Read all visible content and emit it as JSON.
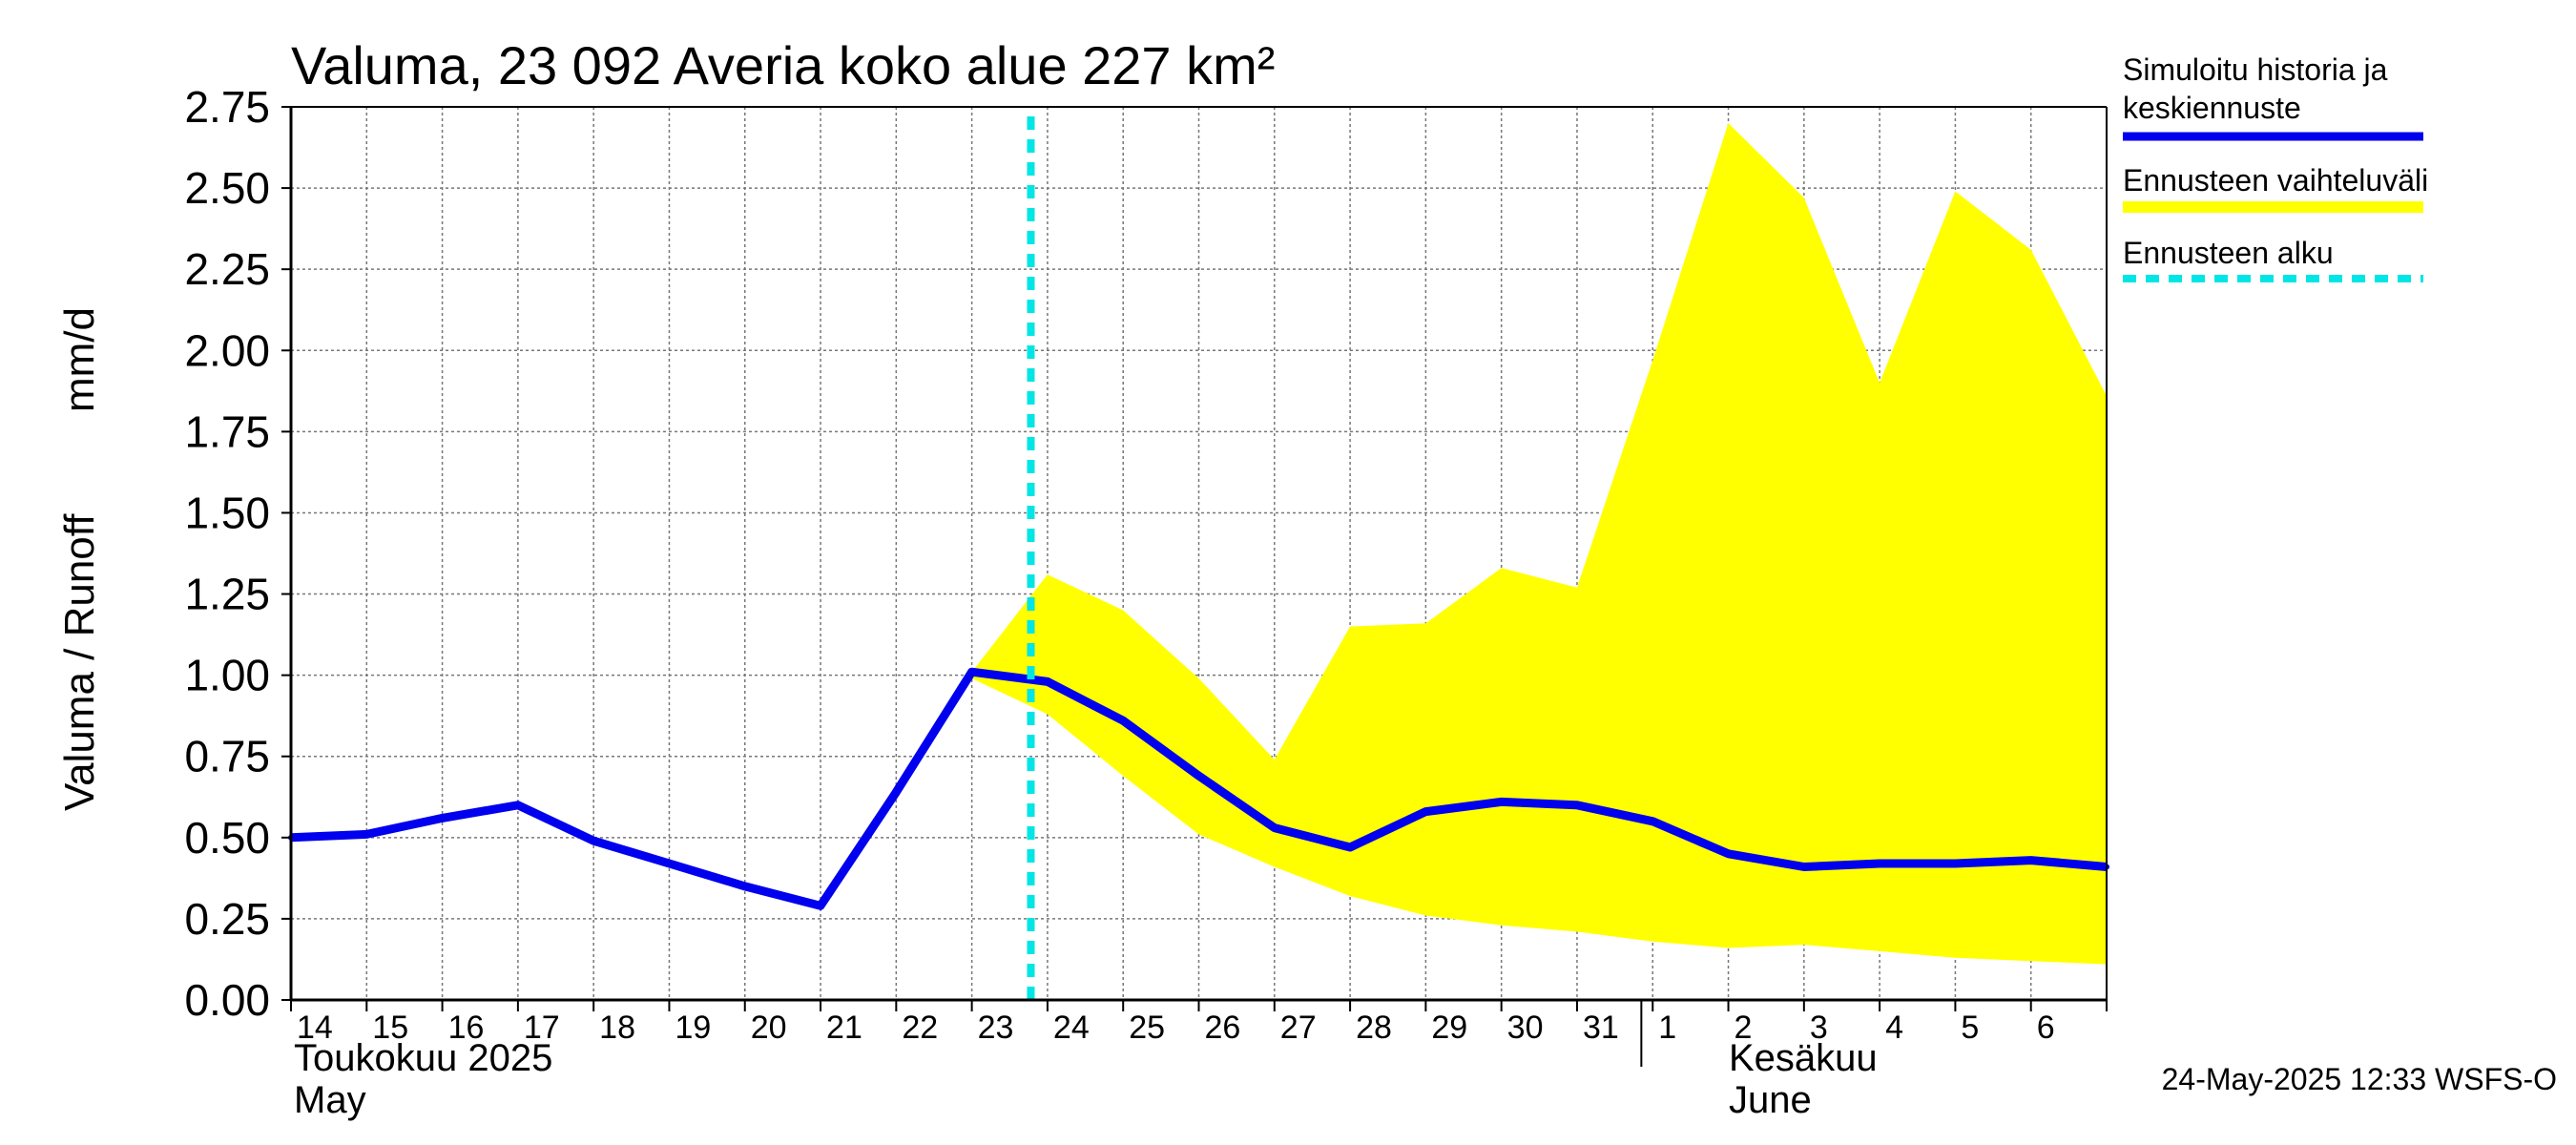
{
  "chart_data": {
    "type": "line",
    "title": "Valuma, 23 092 Averia koko alue 227 km²",
    "ylabel_left": "Valuma / Runoff",
    "ylabel_right": "mm/d",
    "ylim": [
      0,
      2.75
    ],
    "yticks": [
      "0.00",
      "0.25",
      "0.50",
      "0.75",
      "1.00",
      "1.25",
      "1.50",
      "1.75",
      "2.00",
      "2.25",
      "2.50",
      "2.75"
    ],
    "grid": true,
    "x_range": [
      "2025-05-14",
      "2025-06-07"
    ],
    "x_tick_labels": [
      "14",
      "15",
      "16",
      "17",
      "18",
      "19",
      "20",
      "21",
      "22",
      "23",
      "24",
      "25",
      "26",
      "27",
      "28",
      "29",
      "30",
      "31",
      "1",
      "2",
      "3",
      "4",
      "5",
      "6"
    ],
    "month_labels": {
      "may_fi": "Toukokuu  2025",
      "may_en": "May",
      "june_fi": "Kesäkuu",
      "june_en": "June"
    },
    "forecast_start": "2025-05-24",
    "series": [
      {
        "name": "Simuloitu historia ja keskiennuste",
        "color": "#0000ee",
        "x": [
          "2025-05-14",
          "2025-05-15",
          "2025-05-16",
          "2025-05-17",
          "2025-05-18",
          "2025-05-19",
          "2025-05-20",
          "2025-05-21",
          "2025-05-22",
          "2025-05-23",
          "2025-05-24",
          "2025-05-25",
          "2025-05-26",
          "2025-05-27",
          "2025-05-28",
          "2025-05-29",
          "2025-05-30",
          "2025-05-31",
          "2025-06-01",
          "2025-06-02",
          "2025-06-03",
          "2025-06-04",
          "2025-06-05",
          "2025-06-06",
          "2025-06-07"
        ],
        "values": [
          0.5,
          0.51,
          0.56,
          0.6,
          0.49,
          0.42,
          0.35,
          0.29,
          0.64,
          1.01,
          0.98,
          0.86,
          0.69,
          0.53,
          0.47,
          0.58,
          0.61,
          0.6,
          0.55,
          0.45,
          0.41,
          0.42,
          0.42,
          0.43,
          0.41
        ]
      }
    ],
    "band": {
      "name": "Ennusteen vaihteluväli",
      "color": "#ffff00",
      "x": [
        "2025-05-23",
        "2025-05-24",
        "2025-05-25",
        "2025-05-26",
        "2025-05-27",
        "2025-05-28",
        "2025-05-29",
        "2025-05-30",
        "2025-05-31",
        "2025-06-01",
        "2025-06-02",
        "2025-06-03",
        "2025-06-04",
        "2025-06-05",
        "2025-06-06",
        "2025-06-07"
      ],
      "upper": [
        1.01,
        1.31,
        1.2,
        0.99,
        0.74,
        1.15,
        1.16,
        1.33,
        1.27,
        1.97,
        2.7,
        2.47,
        1.9,
        2.49,
        2.31,
        1.86
      ],
      "lower": [
        0.99,
        0.88,
        0.69,
        0.51,
        0.41,
        0.32,
        0.26,
        0.23,
        0.21,
        0.18,
        0.16,
        0.17,
        0.15,
        0.13,
        0.12,
        0.11
      ]
    },
    "forecast_line": {
      "name": "Ennusteen alku",
      "color": "#00e5e5"
    },
    "legend_placement": "right"
  },
  "legend": {
    "items": [
      {
        "label_lines": [
          "Simuloitu historia ja",
          "keskiennuste"
        ],
        "color": "#0000ee",
        "style": "solid"
      },
      {
        "label_lines": [
          "Ennusteen vaihteluväli"
        ],
        "color": "#ffff00",
        "style": "solid"
      },
      {
        "label_lines": [
          "Ennusteen alku"
        ],
        "color": "#00e5e5",
        "style": "dashed"
      }
    ]
  },
  "footer": {
    "timestamp": "24-May-2025 12:33 WSFS-O"
  }
}
